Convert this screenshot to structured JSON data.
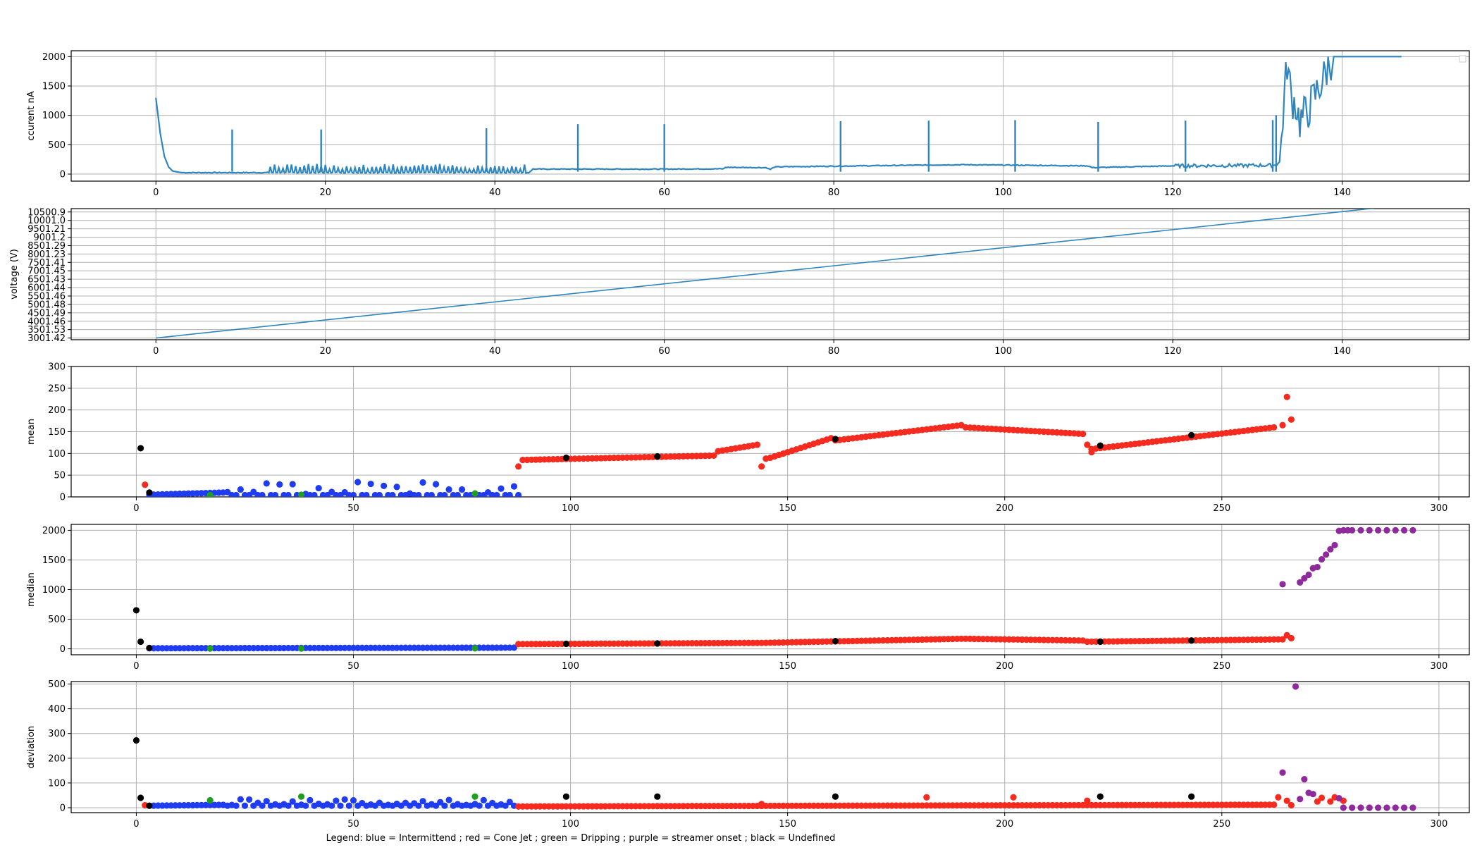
{
  "colors": {
    "line": "#2e86c1",
    "blue": "#1f3cf0",
    "red": "#f52b1f",
    "green": "#1f9e1f",
    "purple": "#8e2a9c",
    "black": "#000000"
  },
  "legend_text": "Legend:  blue = Intermittend ; red = Cone Jet ; green = Dripping ; purple = streamer onset ; black = Undefined",
  "chart_data": [
    {
      "type": "line",
      "ylabel": "ccurent nA",
      "xlim": [
        -10,
        155
      ],
      "ylim": [
        -120,
        2100
      ],
      "xticks": [
        0,
        20,
        40,
        60,
        80,
        100,
        120,
        140
      ],
      "yticks": [
        0,
        500,
        1000,
        1500,
        2000
      ],
      "grid": true,
      "legend": "top-right (empty)",
      "series": [
        {
          "baseline": [
            [
              0,
              1300
            ],
            [
              0.5,
              700
            ],
            [
              1,
              300
            ],
            [
              1.5,
              120
            ],
            [
              2,
              50
            ],
            [
              3,
              25
            ],
            [
              44,
              25
            ],
            [
              44.5,
              85
            ],
            [
              60,
              85
            ],
            [
              67,
              90
            ],
            [
              67.2,
              115
            ],
            [
              72,
              110
            ],
            [
              72.5,
              80
            ],
            [
              73,
              120
            ],
            [
              74,
              125
            ],
            [
              95,
              160
            ],
            [
              110,
              140
            ],
            [
              110.5,
              110
            ],
            [
              120,
              140
            ],
            [
              132,
              150
            ],
            [
              132.6,
              200
            ],
            [
              133,
              1000
            ],
            [
              133.5,
              1900
            ],
            [
              134,
              1300
            ],
            [
              134.5,
              1200
            ],
            [
              135,
              900
            ],
            [
              136,
              1100
            ],
            [
              137,
              1400
            ],
            [
              138,
              1700
            ],
            [
              138.5,
              1900
            ],
            [
              139,
              2000
            ],
            [
              147,
              2000
            ]
          ],
          "spikes": [
            [
              9,
              760
            ],
            [
              19.5,
              760
            ],
            [
              39,
              780
            ],
            [
              49.8,
              850
            ],
            [
              60,
              850
            ],
            [
              80.8,
              900
            ],
            [
              91.2,
              910
            ],
            [
              101.4,
              920
            ],
            [
              111.2,
              890
            ],
            [
              121.5,
              910
            ],
            [
              131.8,
              920
            ],
            [
              132.2,
              1000
            ]
          ]
        }
      ]
    },
    {
      "type": "line",
      "ylabel": "voltage (V)",
      "xlim": [
        -10,
        155
      ],
      "ylim": [
        2901,
        10701
      ],
      "xticks": [
        0,
        20,
        40,
        60,
        80,
        100,
        120,
        140
      ],
      "yticks": [
        "3001.42",
        "3501.53",
        "4001.46",
        "4501.49",
        "5001.48",
        "5501.46",
        "6001.44",
        "6501.43",
        "7001.45",
        "7501.41",
        "8001.23",
        "8501.29",
        "9001.2",
        "9501.21",
        "10001.0",
        "10500.9"
      ],
      "ytick_values": [
        3001.42,
        3501.53,
        4001.46,
        4501.49,
        5001.48,
        5501.46,
        6001.44,
        6501.43,
        7001.45,
        7501.41,
        8001.23,
        8501.29,
        9001.2,
        9501.21,
        10001.0,
        10500.9
      ],
      "grid": true,
      "series": [
        {
          "x": [
            0,
            147
          ],
          "y": [
            3001.42,
            10900
          ]
        }
      ]
    },
    {
      "type": "scatter",
      "ylabel": "mean",
      "xlim": [
        -15,
        307
      ],
      "ylim": [
        0,
        300
      ],
      "xticks": [
        0,
        50,
        100,
        150,
        200,
        250,
        300
      ],
      "yticks": [
        0,
        50,
        100,
        150,
        200,
        250,
        300
      ],
      "grid": true,
      "series": [
        {
          "name": "",
          "color_key": "blue",
          "segments": [
            [
              3,
              88,
              5,
              30
            ]
          ]
        },
        {
          "name": "",
          "color_key": "red",
          "segments": [
            [
              89,
              133,
              85,
              95
            ],
            [
              134,
              143,
              105,
              120
            ],
            [
              146,
              160,
              90,
              135
            ],
            [
              161,
              190,
              130,
              165
            ],
            [
              191,
              218,
              160,
              145
            ],
            [
              220,
              262,
              110,
              160
            ]
          ]
        },
        {
          "name": "",
          "color_key": "red",
          "points": [
            [
              2,
              28
            ],
            [
              88,
              70
            ],
            [
              144,
              70
            ],
            [
              145,
              88
            ],
            [
              219,
              120
            ],
            [
              220,
              103
            ],
            [
              265,
              230
            ],
            [
              266,
              178
            ],
            [
              264,
              165
            ]
          ]
        },
        {
          "name": "",
          "color_key": "black",
          "points": [
            [
              1,
              112
            ],
            [
              3,
              10
            ],
            [
              99,
              90
            ],
            [
              120,
              93
            ],
            [
              161,
              133
            ],
            [
              222,
              118
            ],
            [
              243,
              142
            ]
          ]
        },
        {
          "name": "",
          "color_key": "green",
          "points": [
            [
              17,
              4
            ],
            [
              38,
              5
            ],
            [
              78,
              8
            ]
          ]
        }
      ]
    },
    {
      "type": "scatter",
      "ylabel": "median",
      "xlim": [
        -15,
        307
      ],
      "ylim": [
        -100,
        2100
      ],
      "xticks": [
        0,
        50,
        100,
        150,
        200,
        250,
        300
      ],
      "yticks": [
        0,
        500,
        1000,
        1500,
        2000
      ],
      "grid": true,
      "series": [
        {
          "name": "",
          "color_key": "blue",
          "segments": [
            [
              3,
              87,
              10,
              20
            ]
          ]
        },
        {
          "name": "",
          "color_key": "red",
          "segments": [
            [
              88,
              143,
              80,
              100
            ],
            [
              144,
              190,
              100,
              170
            ],
            [
              191,
              218,
              170,
              140
            ],
            [
              219,
              264,
              120,
              160
            ]
          ]
        },
        {
          "name": "",
          "color_key": "red",
          "points": [
            [
              265,
              230
            ],
            [
              266,
              180
            ]
          ]
        },
        {
          "name": "",
          "color_key": "purple",
          "points": [
            [
              264,
              1090
            ],
            [
              268,
              1120
            ],
            [
              269,
              1190
            ],
            [
              270,
              1250
            ],
            [
              271,
              1360
            ],
            [
              272,
              1380
            ],
            [
              273,
              1510
            ],
            [
              274,
              1590
            ],
            [
              275,
              1680
            ],
            [
              276,
              1750
            ],
            [
              277,
              1990
            ],
            [
              278,
              2000
            ],
            [
              279,
              2000
            ],
            [
              280,
              2000
            ],
            [
              282,
              2000
            ],
            [
              284,
              2000
            ],
            [
              286,
              2000
            ],
            [
              288,
              2000
            ],
            [
              290,
              2000
            ],
            [
              292,
              2000
            ],
            [
              294,
              2000
            ]
          ]
        },
        {
          "name": "",
          "color_key": "black",
          "points": [
            [
              0,
              650
            ],
            [
              1,
              120
            ],
            [
              3,
              15
            ],
            [
              99,
              85
            ],
            [
              120,
              90
            ],
            [
              161,
              130
            ],
            [
              222,
              120
            ],
            [
              243,
              140
            ]
          ]
        },
        {
          "name": "",
          "color_key": "green",
          "points": [
            [
              17,
              5
            ],
            [
              38,
              5
            ],
            [
              78,
              8
            ]
          ]
        }
      ]
    },
    {
      "type": "scatter",
      "ylabel": "deviation",
      "xlim": [
        -15,
        307
      ],
      "ylim": [
        -20,
        510
      ],
      "xticks": [
        0,
        50,
        100,
        150,
        200,
        250,
        300
      ],
      "yticks": [
        0,
        100,
        200,
        300,
        400,
        500
      ],
      "grid": true,
      "series": [
        {
          "name": "",
          "color_key": "blue",
          "segments": [
            [
              3,
              87,
              8,
              25
            ]
          ]
        },
        {
          "name": "",
          "color_key": "red",
          "segments": [
            [
              88,
              262,
              5,
              12
            ]
          ]
        },
        {
          "name": "",
          "color_key": "red",
          "points": [
            [
              2,
              10
            ],
            [
              144,
              15
            ],
            [
              182,
              42
            ],
            [
              202,
              42
            ],
            [
              219,
              28
            ],
            [
              263,
              42
            ],
            [
              265,
              28
            ],
            [
              266,
              10
            ],
            [
              272,
              25
            ],
            [
              273,
              40
            ],
            [
              275,
              25
            ],
            [
              276,
              42
            ],
            [
              278,
              28
            ]
          ]
        },
        {
          "name": "",
          "color_key": "purple",
          "points": [
            [
              264,
              142
            ],
            [
              267,
              490
            ],
            [
              268,
              35
            ],
            [
              269,
              115
            ],
            [
              270,
              60
            ],
            [
              271,
              55
            ],
            [
              277,
              38
            ],
            [
              278,
              0
            ],
            [
              280,
              0
            ],
            [
              282,
              0
            ],
            [
              284,
              0
            ],
            [
              286,
              0
            ],
            [
              288,
              0
            ],
            [
              290,
              0
            ],
            [
              292,
              0
            ],
            [
              294,
              0
            ]
          ]
        },
        {
          "name": "",
          "color_key": "black",
          "points": [
            [
              0,
              272
            ],
            [
              1,
              40
            ],
            [
              3,
              8
            ],
            [
              99,
              45
            ],
            [
              120,
              45
            ],
            [
              161,
              45
            ],
            [
              222,
              45
            ],
            [
              243,
              45
            ]
          ]
        },
        {
          "name": "",
          "color_key": "green",
          "points": [
            [
              17,
              30
            ],
            [
              38,
              45
            ],
            [
              78,
              45
            ]
          ]
        }
      ]
    }
  ]
}
